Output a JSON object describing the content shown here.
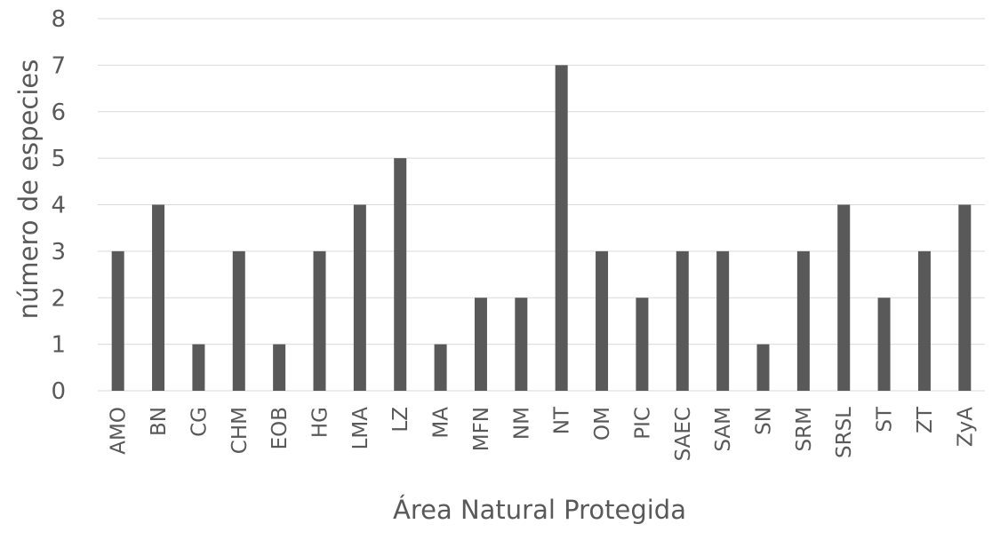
{
  "chart_data": {
    "type": "bar",
    "title": "",
    "xlabel": "Área Natural Protegida",
    "ylabel": "número de especies",
    "ylim": [
      0,
      8
    ],
    "yticks": [
      "0",
      "1",
      "2",
      "3",
      "4",
      "5",
      "6",
      "7",
      "8"
    ],
    "grid": true,
    "legend": "none",
    "bar_color": "#595959",
    "categories": [
      "AMO",
      "BN",
      "CG",
      "CHM",
      "EOB",
      "HG",
      "LMA",
      "LZ",
      "MA",
      "MFN",
      "NM",
      "NT",
      "OM",
      "PIC",
      "SAEC",
      "SAM",
      "SN",
      "SRM",
      "SRSL",
      "ST",
      "ZT",
      "ZyA"
    ],
    "values": [
      3,
      4,
      1,
      3,
      1,
      3,
      4,
      5,
      1,
      2,
      2,
      7,
      3,
      2,
      3,
      3,
      1,
      3,
      4,
      2,
      3,
      4
    ]
  }
}
